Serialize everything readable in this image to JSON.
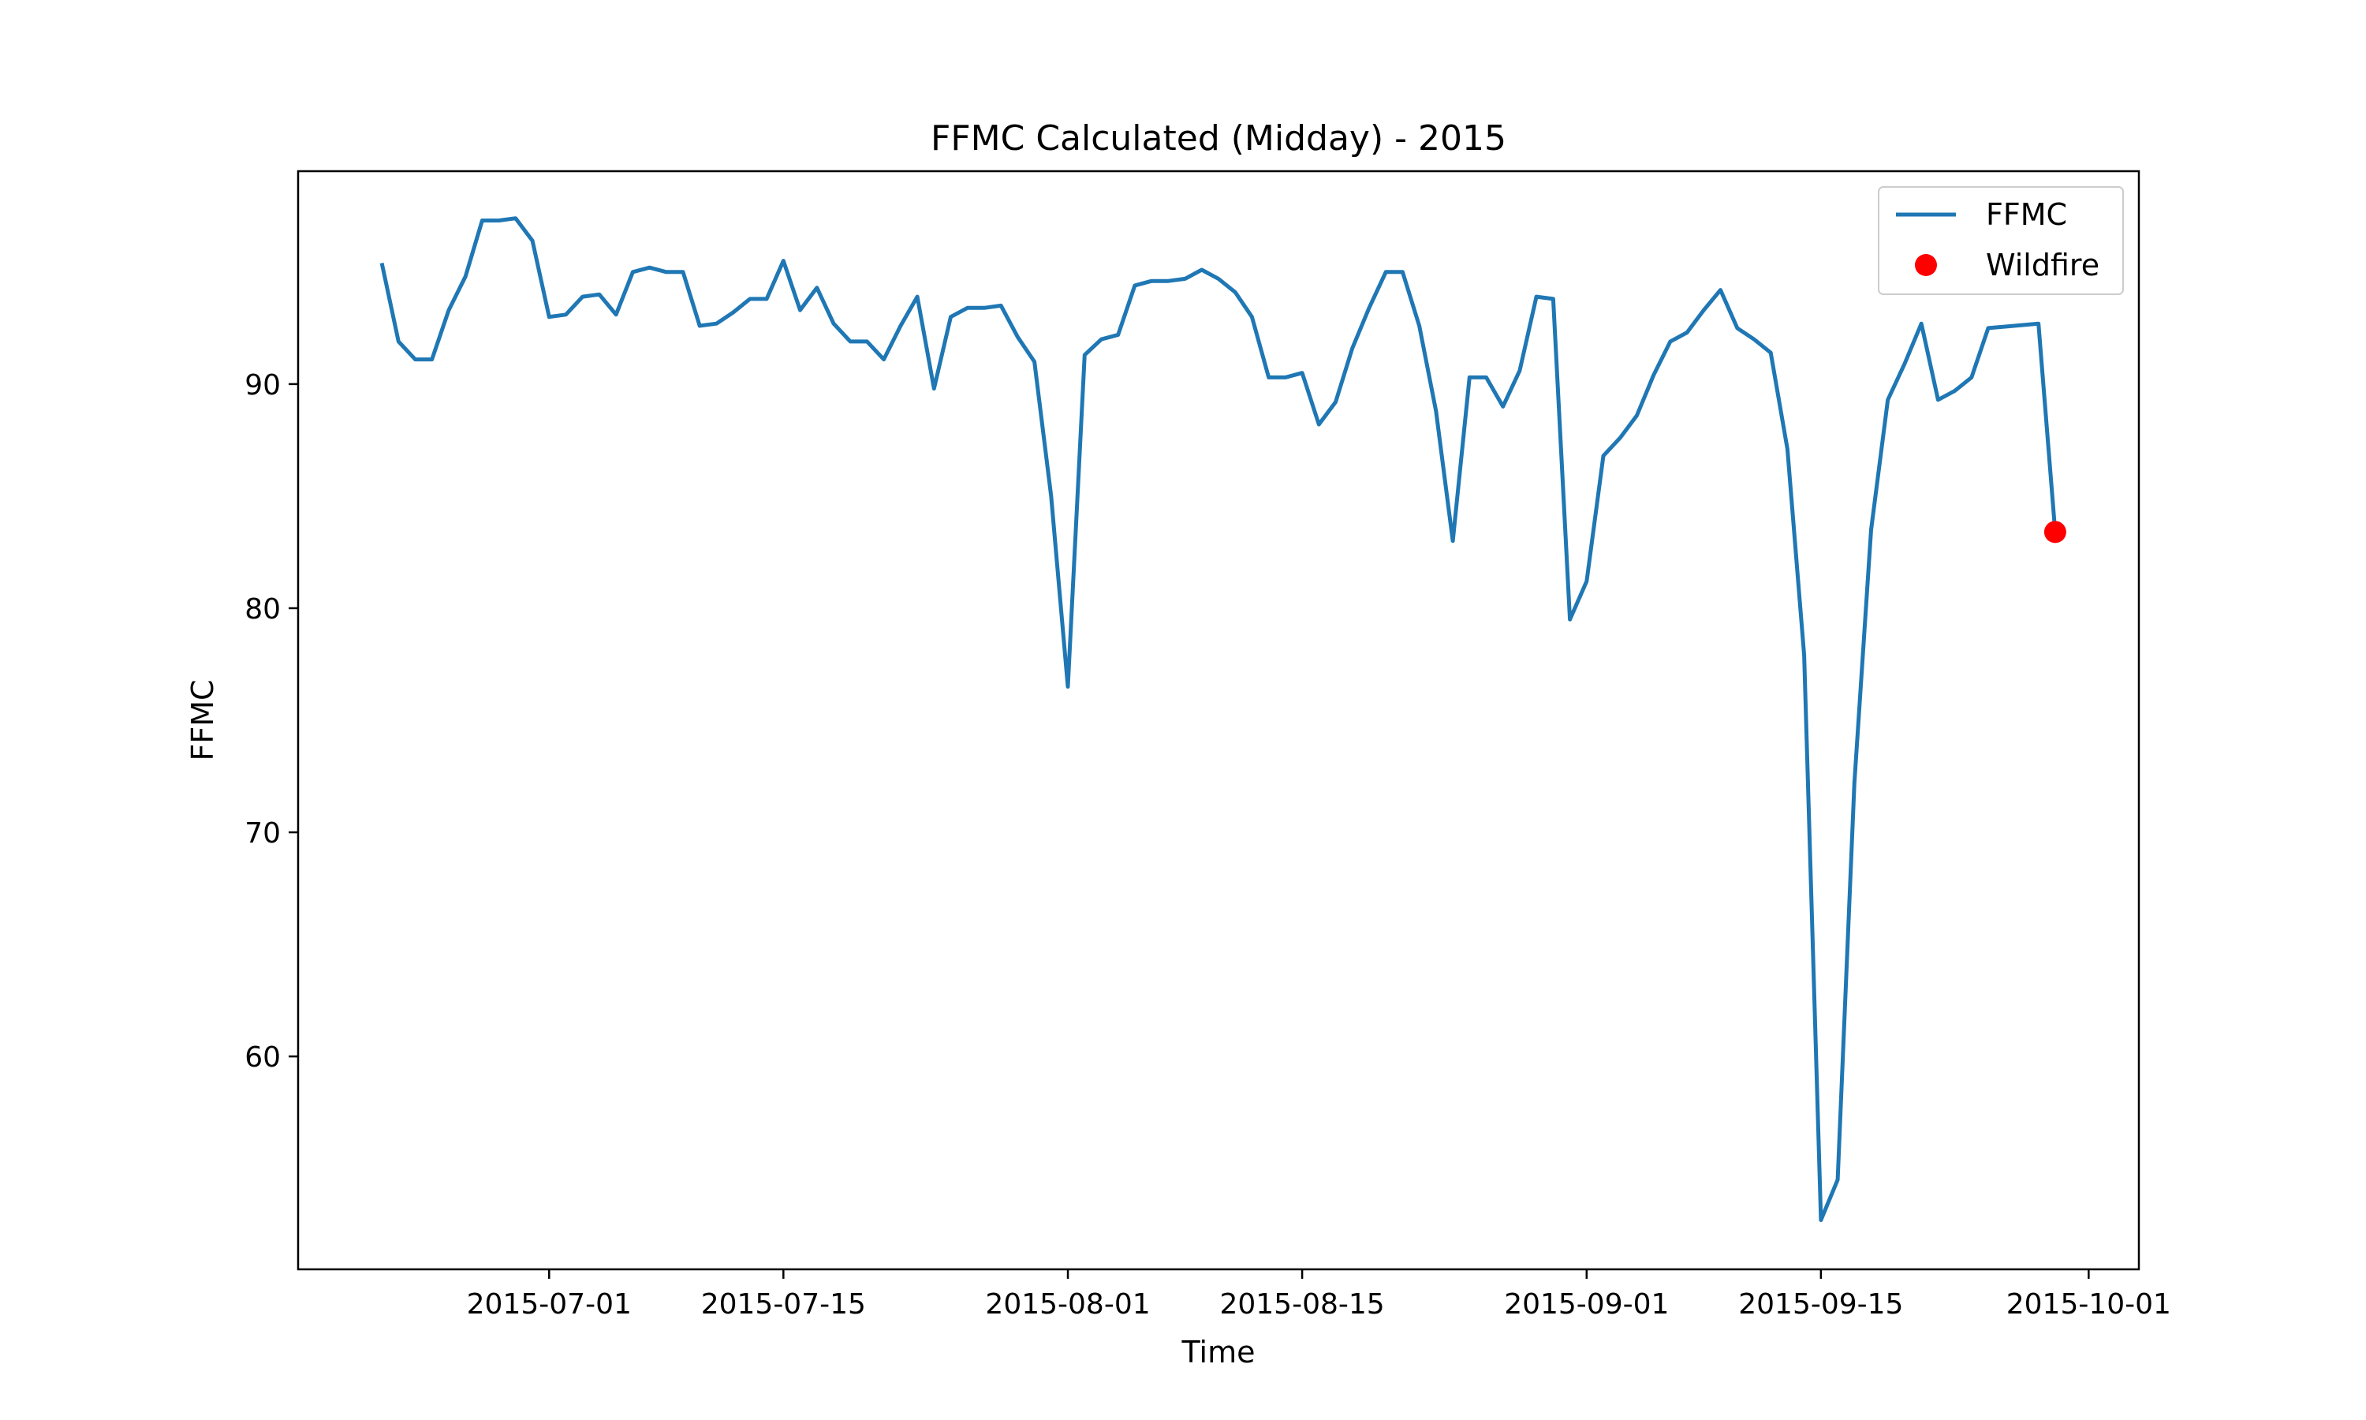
{
  "chart_data": {
    "type": "line",
    "title": "FFMC Calculated (Midday) - 2015",
    "xlabel": "Time",
    "ylabel": "FFMC",
    "x_ticks": [
      "2015-07-01",
      "2015-07-15",
      "2015-08-01",
      "2015-08-15",
      "2015-09-01",
      "2015-09-15",
      "2015-10-01"
    ],
    "y_ticks": [
      60,
      70,
      80,
      90
    ],
    "xlim": [
      "2015-06-16",
      "2015-10-04"
    ],
    "ylim": [
      50.5,
      99.5
    ],
    "legend": {
      "placement": "top-right",
      "entries": [
        "FFMC",
        "Wildfire"
      ]
    },
    "series": [
      {
        "name": "FFMC",
        "color": "#1f77b4",
        "x": [
          "2015-06-21",
          "2015-06-22",
          "2015-06-23",
          "2015-06-24",
          "2015-06-25",
          "2015-06-26",
          "2015-06-27",
          "2015-06-28",
          "2015-06-29",
          "2015-06-30",
          "2015-07-01",
          "2015-07-02",
          "2015-07-03",
          "2015-07-04",
          "2015-07-05",
          "2015-07-06",
          "2015-07-07",
          "2015-07-08",
          "2015-07-09",
          "2015-07-10",
          "2015-07-11",
          "2015-07-12",
          "2015-07-13",
          "2015-07-14",
          "2015-07-15",
          "2015-07-16",
          "2015-07-17",
          "2015-07-18",
          "2015-07-19",
          "2015-07-20",
          "2015-07-21",
          "2015-07-22",
          "2015-07-23",
          "2015-07-24",
          "2015-07-25",
          "2015-07-26",
          "2015-07-27",
          "2015-07-28",
          "2015-07-29",
          "2015-07-30",
          "2015-07-31",
          "2015-08-01",
          "2015-08-02",
          "2015-08-03",
          "2015-08-04",
          "2015-08-05",
          "2015-08-06",
          "2015-08-07",
          "2015-08-08",
          "2015-08-09",
          "2015-08-10",
          "2015-08-11",
          "2015-08-12",
          "2015-08-13",
          "2015-08-14",
          "2015-08-15",
          "2015-08-16",
          "2015-08-17",
          "2015-08-18",
          "2015-08-19",
          "2015-08-20",
          "2015-08-21",
          "2015-08-22",
          "2015-08-23",
          "2015-08-24",
          "2015-08-25",
          "2015-08-26",
          "2015-08-27",
          "2015-08-28",
          "2015-08-29",
          "2015-08-30",
          "2015-08-31",
          "2015-09-01",
          "2015-09-02",
          "2015-09-03",
          "2015-09-04",
          "2015-09-05",
          "2015-09-06",
          "2015-09-07",
          "2015-09-08",
          "2015-09-09",
          "2015-09-10",
          "2015-09-11",
          "2015-09-12",
          "2015-09-13",
          "2015-09-14",
          "2015-09-15",
          "2015-09-16",
          "2015-09-17",
          "2015-09-18",
          "2015-09-19",
          "2015-09-20",
          "2015-09-21",
          "2015-09-22",
          "2015-09-23",
          "2015-09-24",
          "2015-09-25",
          "2015-09-28",
          "2015-09-29"
        ],
        "y": [
          95.4,
          91.9,
          91.1,
          91.1,
          93.3,
          94.8,
          97.3,
          97.3,
          97.4,
          96.4,
          93.0,
          93.1,
          93.9,
          94.0,
          93.1,
          95.0,
          95.2,
          95.0,
          95.0,
          92.6,
          92.7,
          93.2,
          93.8,
          93.8,
          95.5,
          93.3,
          94.3,
          92.7,
          91.9,
          91.9,
          91.1,
          92.6,
          93.9,
          89.8,
          93.0,
          93.4,
          93.4,
          93.5,
          92.1,
          91.0,
          85.0,
          76.5,
          91.3,
          92.0,
          92.2,
          94.4,
          94.6,
          94.6,
          94.7,
          95.1,
          94.7,
          94.1,
          93.0,
          90.3,
          90.3,
          90.5,
          88.2,
          89.2,
          91.6,
          93.4,
          95.0,
          95.0,
          92.6,
          88.8,
          83.0,
          90.3,
          90.3,
          89.0,
          90.6,
          93.9,
          93.8,
          79.5,
          81.2,
          86.8,
          87.6,
          88.6,
          90.4,
          91.9,
          92.3,
          93.3,
          94.2,
          92.5,
          92.0,
          91.4,
          87.1,
          77.9,
          52.7,
          54.5,
          72.2,
          83.5,
          89.3,
          90.9,
          92.7,
          89.3,
          89.7,
          90.3,
          92.5,
          92.7,
          83.4
        ]
      },
      {
        "name": "Wildfire",
        "color": "#ff0000",
        "x": [
          "2015-09-29"
        ],
        "y": [
          83.4
        ]
      }
    ]
  }
}
